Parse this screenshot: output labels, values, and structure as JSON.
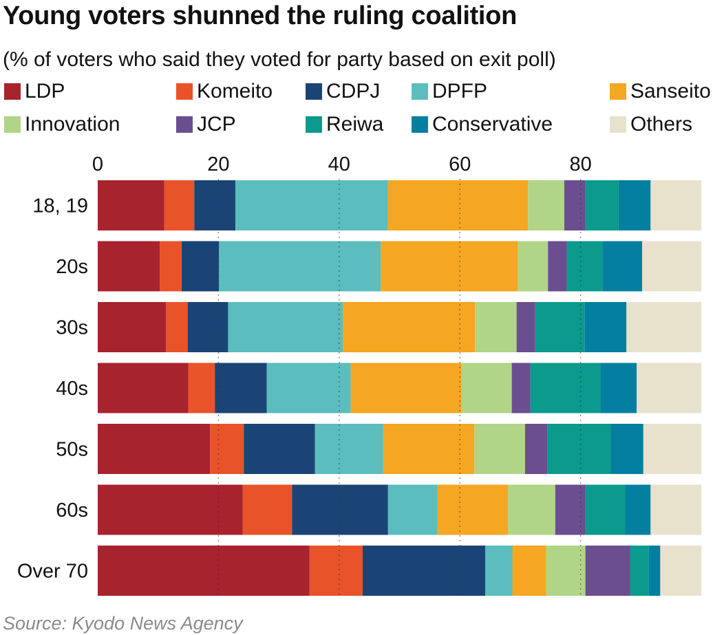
{
  "chart_data": {
    "type": "bar",
    "orientation": "horizontal",
    "stacked": true,
    "title": "Young voters shunned the ruling coalition",
    "subtitle": "(% of voters who said they voted for party based on exit poll)",
    "source": "Source: Kyodo News Agency",
    "xlim": [
      0,
      100
    ],
    "xticks": [
      "0",
      "20",
      "40",
      "60",
      "80"
    ],
    "xtick_values": [
      0,
      20,
      40,
      60,
      80
    ],
    "grid": "dotted vertical at 20, 40, 60, 80",
    "legend_position": "top",
    "categories": [
      "18, 19",
      "20s",
      "30s",
      "40s",
      "50s",
      "60s",
      "Over 70"
    ],
    "series": [
      {
        "name": "LDP",
        "color": "#a7232e",
        "values": [
          11.0,
          10.3,
          11.3,
          15.0,
          18.6,
          24.0,
          35.1
        ]
      },
      {
        "name": "Komeito",
        "color": "#e9532a",
        "values": [
          5.0,
          3.6,
          3.6,
          4.4,
          5.6,
          8.2,
          8.8
        ]
      },
      {
        "name": "CDPJ",
        "color": "#1b4476",
        "values": [
          6.8,
          6.2,
          6.7,
          8.6,
          11.8,
          15.9,
          20.3
        ]
      },
      {
        "name": "DPFP",
        "color": "#5bbdbd",
        "values": [
          25.3,
          26.8,
          19.0,
          13.9,
          11.3,
          8.2,
          4.5
        ]
      },
      {
        "name": "Sanseito",
        "color": "#f5a623",
        "values": [
          23.2,
          22.7,
          21.9,
          18.4,
          15.1,
          11.7,
          5.6
        ]
      },
      {
        "name": "Innovation",
        "color": "#b0d586",
        "values": [
          6.0,
          5.0,
          6.9,
          8.3,
          8.4,
          7.8,
          6.5
        ]
      },
      {
        "name": "JCP",
        "color": "#6b4e8f",
        "values": [
          3.5,
          3.1,
          3.1,
          3.1,
          3.7,
          5.0,
          7.4
        ]
      },
      {
        "name": "Reiwa",
        "color": "#0c9a8c",
        "values": [
          5.5,
          5.9,
          8.2,
          11.6,
          10.5,
          6.6,
          3.1
        ]
      },
      {
        "name": "Conservative",
        "color": "#057fa0",
        "values": [
          5.3,
          6.6,
          6.9,
          6.0,
          5.4,
          4.2,
          1.9
        ]
      },
      {
        "name": "Others",
        "color": "#e8e1cc",
        "values": [
          8.4,
          9.8,
          12.4,
          10.7,
          9.6,
          8.4,
          6.8
        ]
      }
    ]
  }
}
